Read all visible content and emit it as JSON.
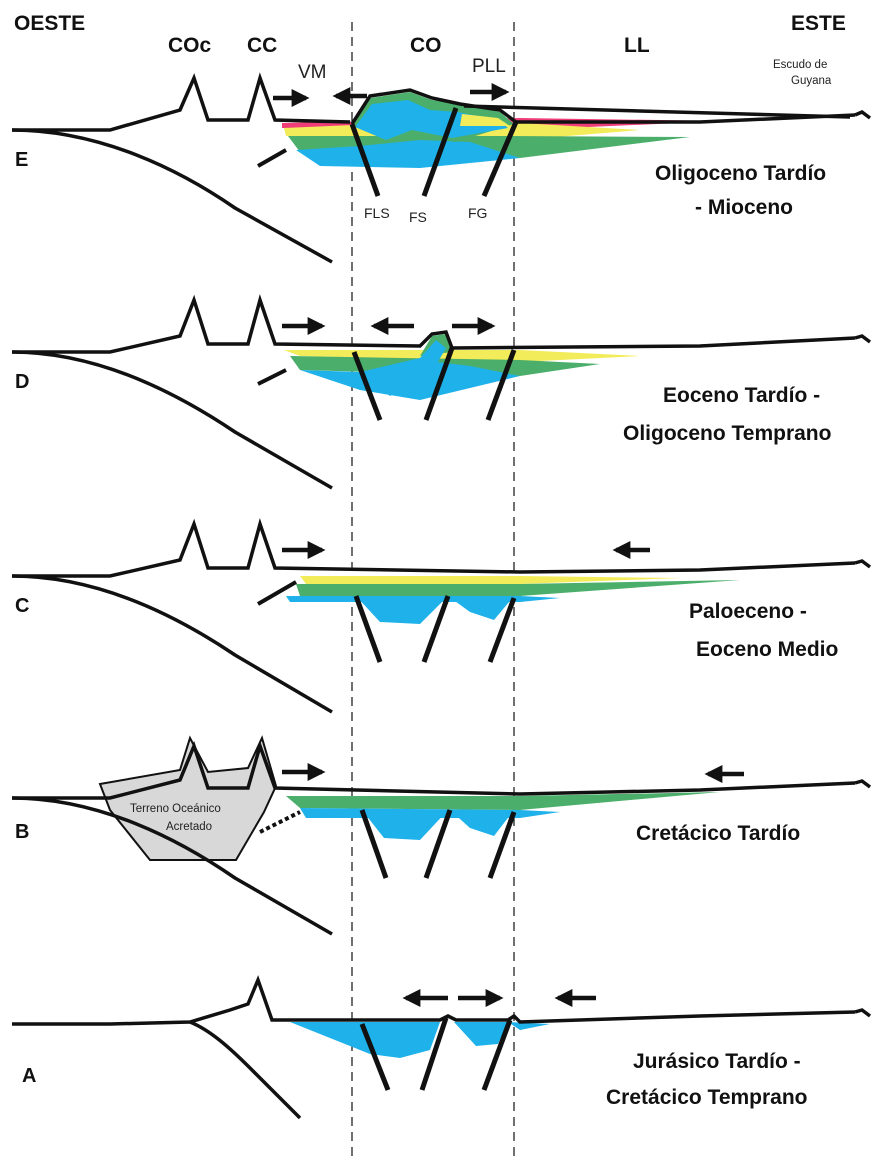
{
  "header": {
    "west": "OESTE",
    "east": "ESTE",
    "coc": "COc",
    "cc": "CC",
    "co": "CO",
    "ll": "LL",
    "vm": "VM",
    "pll": "PLL",
    "shield_line1": "Escudo de",
    "shield_line2": "Guyana"
  },
  "faults": {
    "fls": "FLS",
    "fs": "FS",
    "fg": "FG"
  },
  "terrain": {
    "line1": "Terreno Oceánico",
    "line2": "Acretado"
  },
  "panels": [
    {
      "letter": "E",
      "period_line1": "Oligoceno Tardío",
      "period_line2": "- Mioceno"
    },
    {
      "letter": "D",
      "period_line1": "Eoceno Tardío -",
      "period_line2": "Oligoceno Temprano"
    },
    {
      "letter": "C",
      "period_line1": "Paloeceno -",
      "period_line2": "Eoceno Medio"
    },
    {
      "letter": "B",
      "period_line1": "Cretácico Tardío",
      "period_line2": ""
    },
    {
      "letter": "A",
      "period_line1": "Jurásico Tardío -",
      "period_line2": "Cretácico Temprano"
    }
  ],
  "colors": {
    "blue": "#1fb1ea",
    "green": "#4cae6b",
    "yellow": "#f3ec5a",
    "pink": "#ef3d7a",
    "terrain_gray": "#d8d8d8"
  }
}
